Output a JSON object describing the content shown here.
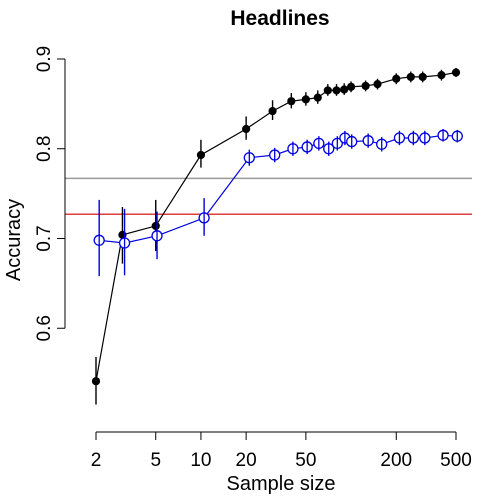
{
  "chart_data": {
    "type": "line",
    "title": "Headlines",
    "xlabel": "Sample size",
    "ylabel": "Accuracy",
    "x_scale": "log",
    "xlim": [
      2,
      500
    ],
    "ylim": [
      0.5,
      0.9
    ],
    "x_ticks": [
      2,
      5,
      10,
      20,
      50,
      200,
      500
    ],
    "x_tick_labels": [
      "2",
      "5",
      "10",
      "20",
      "50",
      "200",
      "500"
    ],
    "y_ticks": [
      0.6,
      0.7,
      0.8,
      0.9
    ],
    "y_tick_labels": [
      "0.6",
      "0.7",
      "0.8",
      "0.9"
    ],
    "grid": false,
    "reference_lines": [
      {
        "y": 0.767,
        "color": "#9a9a9a"
      },
      {
        "y": 0.727,
        "color": "#e03c3c"
      }
    ],
    "series": [
      {
        "color": "#000000",
        "marker": "filled-circle",
        "points": [
          {
            "x": 2,
            "y": 0.541,
            "lo": 0.515,
            "hi": 0.568
          },
          {
            "x": 3,
            "y": 0.704,
            "lo": 0.672,
            "hi": 0.735
          },
          {
            "x": 5,
            "y": 0.714,
            "lo": 0.686,
            "hi": 0.743
          },
          {
            "x": 10,
            "y": 0.793,
            "lo": 0.779,
            "hi": 0.81
          },
          {
            "x": 20,
            "y": 0.822,
            "lo": 0.81,
            "hi": 0.836
          },
          {
            "x": 30,
            "y": 0.842,
            "lo": 0.832,
            "hi": 0.854
          },
          {
            "x": 40,
            "y": 0.853,
            "lo": 0.845,
            "hi": 0.862
          },
          {
            "x": 50,
            "y": 0.855,
            "lo": 0.848,
            "hi": 0.863
          },
          {
            "x": 60,
            "y": 0.857,
            "lo": 0.85,
            "hi": 0.865
          },
          {
            "x": 70,
            "y": 0.865,
            "lo": 0.859,
            "hi": 0.872
          },
          {
            "x": 80,
            "y": 0.865,
            "lo": 0.859,
            "hi": 0.872
          },
          {
            "x": 90,
            "y": 0.866,
            "lo": 0.86,
            "hi": 0.873
          },
          {
            "x": 100,
            "y": 0.869,
            "lo": 0.863,
            "hi": 0.875
          },
          {
            "x": 125,
            "y": 0.87,
            "lo": 0.864,
            "hi": 0.876
          },
          {
            "x": 150,
            "y": 0.872,
            "lo": 0.866,
            "hi": 0.878
          },
          {
            "x": 200,
            "y": 0.878,
            "lo": 0.872,
            "hi": 0.884
          },
          {
            "x": 250,
            "y": 0.88,
            "lo": 0.874,
            "hi": 0.886
          },
          {
            "x": 300,
            "y": 0.88,
            "lo": 0.874,
            "hi": 0.886
          },
          {
            "x": 400,
            "y": 0.882,
            "lo": 0.876,
            "hi": 0.888
          },
          {
            "x": 500,
            "y": 0.885,
            "lo": 0.88,
            "hi": 0.89
          }
        ]
      },
      {
        "color": "#0000e0",
        "marker": "crossed-circle",
        "points": [
          {
            "x": 2.1,
            "y": 0.698,
            "lo": 0.658,
            "hi": 0.743
          },
          {
            "x": 3.1,
            "y": 0.695,
            "lo": 0.659,
            "hi": 0.733
          },
          {
            "x": 5.1,
            "y": 0.703,
            "lo": 0.677,
            "hi": 0.73
          },
          {
            "x": 10.5,
            "y": 0.723,
            "lo": 0.703,
            "hi": 0.745
          },
          {
            "x": 21,
            "y": 0.79,
            "lo": 0.781,
            "hi": 0.799
          },
          {
            "x": 31,
            "y": 0.793,
            "lo": 0.785,
            "hi": 0.801
          },
          {
            "x": 41,
            "y": 0.8,
            "lo": 0.792,
            "hi": 0.808
          },
          {
            "x": 51,
            "y": 0.802,
            "lo": 0.794,
            "hi": 0.81
          },
          {
            "x": 61,
            "y": 0.806,
            "lo": 0.798,
            "hi": 0.814
          },
          {
            "x": 71,
            "y": 0.8,
            "lo": 0.792,
            "hi": 0.808
          },
          {
            "x": 81,
            "y": 0.806,
            "lo": 0.798,
            "hi": 0.814
          },
          {
            "x": 91,
            "y": 0.812,
            "lo": 0.804,
            "hi": 0.82
          },
          {
            "x": 101,
            "y": 0.808,
            "lo": 0.8,
            "hi": 0.816
          },
          {
            "x": 130,
            "y": 0.809,
            "lo": 0.801,
            "hi": 0.817
          },
          {
            "x": 160,
            "y": 0.805,
            "lo": 0.797,
            "hi": 0.813
          },
          {
            "x": 210,
            "y": 0.812,
            "lo": 0.804,
            "hi": 0.82
          },
          {
            "x": 260,
            "y": 0.812,
            "lo": 0.804,
            "hi": 0.82
          },
          {
            "x": 310,
            "y": 0.812,
            "lo": 0.804,
            "hi": 0.82
          },
          {
            "x": 410,
            "y": 0.815,
            "lo": 0.808,
            "hi": 0.822
          },
          {
            "x": 510,
            "y": 0.814,
            "lo": 0.807,
            "hi": 0.821
          }
        ]
      }
    ]
  }
}
